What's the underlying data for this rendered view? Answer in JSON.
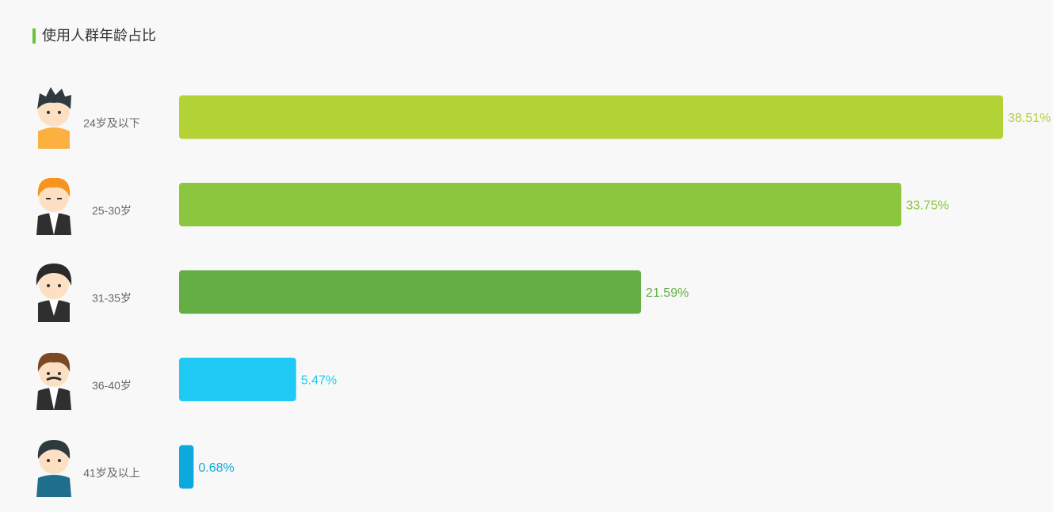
{
  "chart_data": {
    "type": "bar",
    "orientation": "horizontal",
    "title": "使用人群年龄占比",
    "categories": [
      "24岁及以下",
      "25-30岁",
      "31-35岁",
      "36-40岁",
      "41岁及以上"
    ],
    "values": [
      38.51,
      33.75,
      21.59,
      5.47,
      0.68
    ],
    "value_labels": [
      "38.51%",
      "33.75%",
      "21.59%",
      "5.47%",
      "0.68%"
    ],
    "colors": [
      "#b2d235",
      "#8cc63f",
      "#65ae45",
      "#1fcbf5",
      "#0ba9dd"
    ]
  }
}
